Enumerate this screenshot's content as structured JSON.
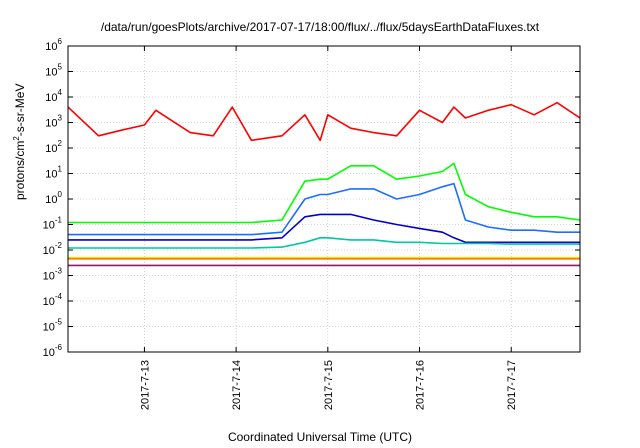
{
  "chart_data": {
    "type": "line",
    "title": "/data/run/goesPlots/archive/2017-07-17/18:00/flux/../flux/5daysEarthDataFluxes.txt",
    "xlabel": "Coordinated Universal Time (UTC)",
    "ylabel": "protons/cm2-s-sr-MeV",
    "y_scale": "log",
    "ylim": [
      1e-06,
      1000000.0
    ],
    "xlim": [
      "2017-07-12 04:00",
      "2017-07-17 18:00"
    ],
    "x_tick_labels": [
      "2017-7-13",
      "2017-7-14",
      "2017-7-15",
      "2017-7-16",
      "2017-7-17"
    ],
    "x_tick_dates": [
      "2017-07-13",
      "2017-07-14",
      "2017-07-15",
      "2017-07-16",
      "2017-07-17"
    ],
    "y_tick_labels": [
      {
        "base": "10",
        "exp": "6"
      },
      {
        "base": "10",
        "exp": "5"
      },
      {
        "base": "10",
        "exp": "4"
      },
      {
        "base": "10",
        "exp": "3"
      },
      {
        "base": "10",
        "exp": "2"
      },
      {
        "base": "10",
        "exp": "1"
      },
      {
        "base": "10",
        "exp": "0"
      },
      {
        "base": "10",
        "exp": "-1"
      },
      {
        "base": "10",
        "exp": "-2"
      },
      {
        "base": "10",
        "exp": "-3"
      },
      {
        "base": "10",
        "exp": "-4"
      },
      {
        "base": "10",
        "exp": "-5"
      },
      {
        "base": "10",
        "exp": "-6"
      }
    ],
    "grid": true,
    "x": [
      "2017-07-12 04:00",
      "2017-07-12 12:00",
      "2017-07-12 18:00",
      "2017-07-13 00:00",
      "2017-07-13 03:00",
      "2017-07-13 12:00",
      "2017-07-13 18:00",
      "2017-07-13 23:00",
      "2017-07-14 04:00",
      "2017-07-14 12:00",
      "2017-07-14 18:00",
      "2017-07-14 22:00",
      "2017-07-15 00:00",
      "2017-07-15 06:00",
      "2017-07-15 12:00",
      "2017-07-15 18:00",
      "2017-07-16 00:00",
      "2017-07-16 06:00",
      "2017-07-16 09:00",
      "2017-07-16 12:00",
      "2017-07-16 18:00",
      "2017-07-17 00:00",
      "2017-07-17 06:00",
      "2017-07-17 12:00",
      "2017-07-17 18:00"
    ],
    "series": [
      {
        "color": "#ff0000",
        "values": [
          4000,
          300,
          500,
          800,
          3000,
          400,
          300,
          4000,
          200,
          300,
          2000,
          200,
          2000,
          600,
          400,
          300,
          3000,
          1000,
          4000,
          1500,
          3000,
          5000,
          2000,
          6000,
          1500
        ]
      },
      {
        "color": "#00ff00",
        "values": [
          0.12,
          0.12,
          0.12,
          0.12,
          0.12,
          0.12,
          0.12,
          0.12,
          0.12,
          0.15,
          5,
          6,
          6,
          20,
          20,
          6,
          8,
          12,
          25,
          1.5,
          0.5,
          0.3,
          0.2,
          0.2,
          0.15
        ]
      },
      {
        "color": "#1a6fff",
        "values": [
          0.04,
          0.04,
          0.04,
          0.04,
          0.04,
          0.04,
          0.04,
          0.04,
          0.04,
          0.05,
          1,
          1.5,
          1.5,
          2.5,
          2.5,
          1,
          1.5,
          3,
          4,
          0.15,
          0.08,
          0.06,
          0.06,
          0.05,
          0.05
        ]
      },
      {
        "color": "#0000cc",
        "values": [
          0.025,
          0.025,
          0.025,
          0.025,
          0.025,
          0.025,
          0.025,
          0.025,
          0.025,
          0.03,
          0.2,
          0.25,
          0.25,
          0.25,
          0.15,
          0.1,
          0.07,
          0.05,
          0.03,
          0.02,
          0.02,
          0.02,
          0.02,
          0.02,
          0.02
        ]
      },
      {
        "color": "#00c8a0",
        "values": [
          0.012,
          0.012,
          0.012,
          0.012,
          0.012,
          0.012,
          0.012,
          0.012,
          0.012,
          0.013,
          0.02,
          0.03,
          0.03,
          0.025,
          0.025,
          0.02,
          0.02,
          0.018,
          0.018,
          0.018,
          0.018,
          0.017,
          0.017,
          0.017,
          0.017
        ]
      },
      {
        "color": "#e8e800",
        "values": [
          0.005,
          0.005,
          0.005,
          0.005,
          0.005,
          0.005,
          0.005,
          0.005,
          0.005,
          0.005,
          0.005,
          0.005,
          0.005,
          0.005,
          0.005,
          0.005,
          0.005,
          0.005,
          0.005,
          0.005,
          0.005,
          0.005,
          0.005,
          0.005,
          0.005
        ]
      },
      {
        "color": "#ff7a00",
        "values": [
          0.0045,
          0.0045,
          0.0045,
          0.0045,
          0.0045,
          0.0045,
          0.0045,
          0.0045,
          0.0045,
          0.0045,
          0.0045,
          0.0045,
          0.0045,
          0.0045,
          0.0045,
          0.0045,
          0.0045,
          0.0045,
          0.0045,
          0.0045,
          0.0045,
          0.0045,
          0.0045,
          0.0045,
          0.0045
        ]
      },
      {
        "color": "#8b1a6b",
        "values": [
          0.0025,
          0.0025,
          0.0025,
          0.0025,
          0.0025,
          0.0025,
          0.0025,
          0.0025,
          0.0025,
          0.0025,
          0.0025,
          0.0025,
          0.0025,
          0.0025,
          0.0025,
          0.0025,
          0.0025,
          0.0025,
          0.0025,
          0.0025,
          0.0025,
          0.0025,
          0.0025,
          0.0025,
          0.0025
        ]
      }
    ]
  }
}
